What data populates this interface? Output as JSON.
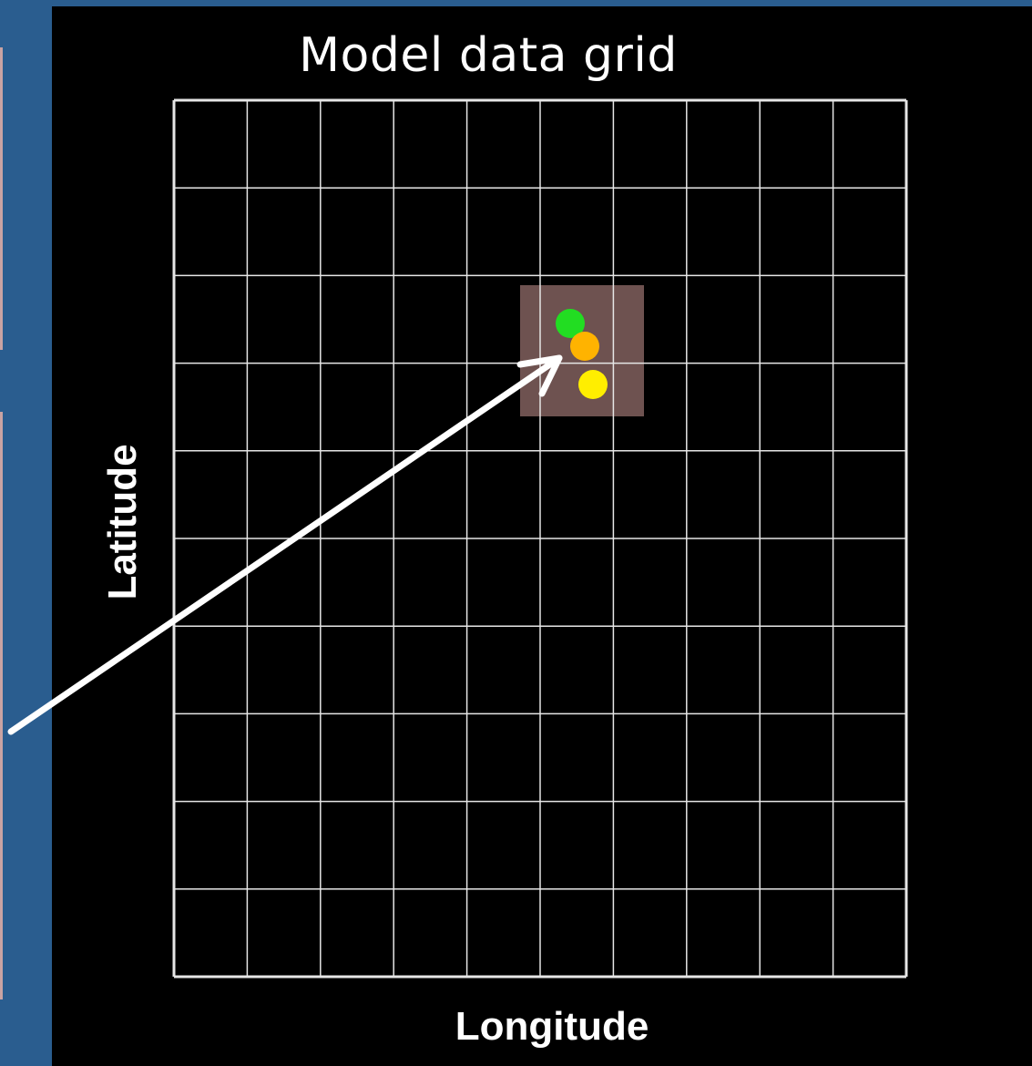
{
  "diagram": {
    "title": "Model data grid",
    "x_axis_label": "Longitude",
    "y_axis_label": "Latitude",
    "grid": {
      "columns": 10,
      "rows": 10,
      "line_color": "#e6e6e6"
    },
    "highlight_cell": {
      "color": "#6e5250"
    },
    "points": [
      {
        "name": "green-point",
        "color": "#22dd22"
      },
      {
        "name": "orange-point",
        "color": "#ffb300"
      },
      {
        "name": "yellow-point",
        "color": "#ffee00"
      }
    ],
    "arrow": {
      "color": "#ffffff"
    }
  },
  "colors": {
    "background": "#000000",
    "frame": "#2a5d8f",
    "text": "#ffffff"
  }
}
